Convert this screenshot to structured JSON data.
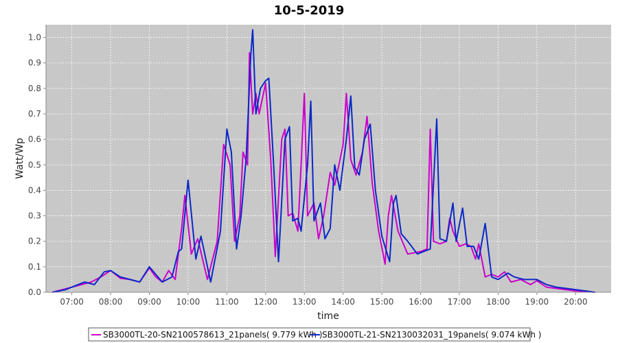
{
  "chart_data": {
    "type": "line",
    "title": "10-5-2019",
    "xlabel": "time",
    "ylabel": "Watt/Wp",
    "xlim": [
      "06:20",
      "20:55"
    ],
    "ylim": [
      0,
      1.05
    ],
    "grid": true,
    "legend_position": "bottom-center",
    "x_ticks": [
      "07:00",
      "08:00",
      "09:00",
      "10:00",
      "11:00",
      "12:00",
      "13:00",
      "14:00",
      "15:00",
      "16:00",
      "17:00",
      "18:00",
      "19:00",
      "20:00"
    ],
    "y_ticks": [
      "0.0",
      "0.1",
      "0.2",
      "0.3",
      "0.4",
      "0.5",
      "0.6",
      "0.7",
      "0.8",
      "0.9",
      "1.0"
    ],
    "plot_background": "#c8c8c8",
    "series": [
      {
        "name": "SB3000TL-20-SN2100578613_21panels( 9.779 kWh )",
        "color": "#cc00cc",
        "points": [
          [
            "06:30",
            0.0
          ],
          [
            "06:45",
            0.01
          ],
          [
            "07:00",
            0.02
          ],
          [
            "07:15",
            0.03
          ],
          [
            "07:30",
            0.04
          ],
          [
            "07:45",
            0.06
          ],
          [
            "08:00",
            0.085
          ],
          [
            "08:15",
            0.055
          ],
          [
            "08:30",
            0.05
          ],
          [
            "08:45",
            0.04
          ],
          [
            "09:00",
            0.095
          ],
          [
            "09:10",
            0.06
          ],
          [
            "09:20",
            0.04
          ],
          [
            "09:30",
            0.085
          ],
          [
            "09:40",
            0.05
          ],
          [
            "09:50",
            0.25
          ],
          [
            "09:55",
            0.38
          ],
          [
            "10:05",
            0.15
          ],
          [
            "10:15",
            0.21
          ],
          [
            "10:30",
            0.05
          ],
          [
            "10:45",
            0.2
          ],
          [
            "10:55",
            0.58
          ],
          [
            "11:05",
            0.5
          ],
          [
            "11:12",
            0.2
          ],
          [
            "11:20",
            0.3
          ],
          [
            "11:25",
            0.55
          ],
          [
            "11:32",
            0.5
          ],
          [
            "11:35",
            0.94
          ],
          [
            "11:40",
            0.7
          ],
          [
            "11:45",
            0.78
          ],
          [
            "11:50",
            0.7
          ],
          [
            "12:00",
            0.82
          ],
          [
            "12:08",
            0.52
          ],
          [
            "12:15",
            0.14
          ],
          [
            "12:25",
            0.6
          ],
          [
            "12:30",
            0.64
          ],
          [
            "12:35",
            0.3
          ],
          [
            "12:42",
            0.31
          ],
          [
            "12:50",
            0.24
          ],
          [
            "12:55",
            0.5
          ],
          [
            "13:00",
            0.78
          ],
          [
            "13:05",
            0.3
          ],
          [
            "13:15",
            0.35
          ],
          [
            "13:22",
            0.21
          ],
          [
            "13:30",
            0.3
          ],
          [
            "13:40",
            0.47
          ],
          [
            "13:47",
            0.42
          ],
          [
            "14:00",
            0.58
          ],
          [
            "14:05",
            0.78
          ],
          [
            "14:12",
            0.52
          ],
          [
            "14:20",
            0.46
          ],
          [
            "14:30",
            0.55
          ],
          [
            "14:37",
            0.69
          ],
          [
            "14:45",
            0.43
          ],
          [
            "14:55",
            0.24
          ],
          [
            "15:05",
            0.11
          ],
          [
            "15:10",
            0.3
          ],
          [
            "15:15",
            0.38
          ],
          [
            "15:25",
            0.24
          ],
          [
            "15:30",
            0.21
          ],
          [
            "15:40",
            0.15
          ],
          [
            "16:00",
            0.16
          ],
          [
            "16:10",
            0.17
          ],
          [
            "16:15",
            0.64
          ],
          [
            "16:20",
            0.2
          ],
          [
            "16:30",
            0.19
          ],
          [
            "16:40",
            0.2
          ],
          [
            "16:45",
            0.29
          ],
          [
            "16:50",
            0.24
          ],
          [
            "17:00",
            0.18
          ],
          [
            "17:10",
            0.19
          ],
          [
            "17:18",
            0.18
          ],
          [
            "17:25",
            0.13
          ],
          [
            "17:30",
            0.19
          ],
          [
            "17:40",
            0.06
          ],
          [
            "17:50",
            0.07
          ],
          [
            "18:00",
            0.06
          ],
          [
            "18:10",
            0.08
          ],
          [
            "18:20",
            0.04
          ],
          [
            "18:35",
            0.05
          ],
          [
            "18:50",
            0.03
          ],
          [
            "19:00",
            0.045
          ],
          [
            "19:15",
            0.02
          ],
          [
            "19:30",
            0.015
          ],
          [
            "19:45",
            0.01
          ],
          [
            "20:00",
            0.005
          ],
          [
            "20:30",
            0.0
          ]
        ]
      },
      {
        "name": "SB3000TL-21-SN2130032031_19panels( 9.074 kWh )",
        "color": "#0a28c8",
        "points": [
          [
            "06:30",
            0.0
          ],
          [
            "06:50",
            0.01
          ],
          [
            "07:05",
            0.025
          ],
          [
            "07:20",
            0.04
          ],
          [
            "07:35",
            0.03
          ],
          [
            "07:50",
            0.08
          ],
          [
            "08:00",
            0.085
          ],
          [
            "08:15",
            0.06
          ],
          [
            "08:30",
            0.05
          ],
          [
            "08:45",
            0.04
          ],
          [
            "09:00",
            0.1
          ],
          [
            "09:10",
            0.07
          ],
          [
            "09:20",
            0.04
          ],
          [
            "09:35",
            0.06
          ],
          [
            "09:45",
            0.16
          ],
          [
            "09:50",
            0.17
          ],
          [
            "10:00",
            0.44
          ],
          [
            "10:12",
            0.13
          ],
          [
            "10:20",
            0.22
          ],
          [
            "10:35",
            0.04
          ],
          [
            "10:50",
            0.24
          ],
          [
            "11:00",
            0.64
          ],
          [
            "11:07",
            0.55
          ],
          [
            "11:15",
            0.17
          ],
          [
            "11:22",
            0.3
          ],
          [
            "11:30",
            0.53
          ],
          [
            "11:37",
            0.93
          ],
          [
            "11:40",
            1.03
          ],
          [
            "11:45",
            0.7
          ],
          [
            "11:52",
            0.8
          ],
          [
            "12:00",
            0.83
          ],
          [
            "12:05",
            0.84
          ],
          [
            "12:12",
            0.52
          ],
          [
            "12:20",
            0.12
          ],
          [
            "12:30",
            0.6
          ],
          [
            "12:37",
            0.65
          ],
          [
            "12:42",
            0.28
          ],
          [
            "12:50",
            0.29
          ],
          [
            "12:55",
            0.24
          ],
          [
            "13:05",
            0.5
          ],
          [
            "13:10",
            0.75
          ],
          [
            "13:15",
            0.28
          ],
          [
            "13:25",
            0.35
          ],
          [
            "13:32",
            0.21
          ],
          [
            "13:40",
            0.25
          ],
          [
            "13:47",
            0.5
          ],
          [
            "13:55",
            0.4
          ],
          [
            "14:05",
            0.6
          ],
          [
            "14:12",
            0.77
          ],
          [
            "14:18",
            0.49
          ],
          [
            "14:25",
            0.46
          ],
          [
            "14:33",
            0.6
          ],
          [
            "14:42",
            0.66
          ],
          [
            "14:50",
            0.4
          ],
          [
            "15:00",
            0.22
          ],
          [
            "15:12",
            0.12
          ],
          [
            "15:18",
            0.35
          ],
          [
            "15:22",
            0.38
          ],
          [
            "15:30",
            0.23
          ],
          [
            "15:40",
            0.2
          ],
          [
            "15:55",
            0.15
          ],
          [
            "16:05",
            0.16
          ],
          [
            "16:15",
            0.17
          ],
          [
            "16:25",
            0.68
          ],
          [
            "16:30",
            0.21
          ],
          [
            "16:40",
            0.2
          ],
          [
            "16:50",
            0.35
          ],
          [
            "16:55",
            0.2
          ],
          [
            "17:05",
            0.33
          ],
          [
            "17:12",
            0.18
          ],
          [
            "17:22",
            0.18
          ],
          [
            "17:30",
            0.13
          ],
          [
            "17:40",
            0.27
          ],
          [
            "17:50",
            0.06
          ],
          [
            "18:00",
            0.05
          ],
          [
            "18:15",
            0.075
          ],
          [
            "18:25",
            0.06
          ],
          [
            "18:40",
            0.05
          ],
          [
            "19:00",
            0.05
          ],
          [
            "19:15",
            0.03
          ],
          [
            "19:30",
            0.02
          ],
          [
            "19:45",
            0.015
          ],
          [
            "20:00",
            0.01
          ],
          [
            "20:30",
            0.0
          ]
        ]
      }
    ]
  }
}
